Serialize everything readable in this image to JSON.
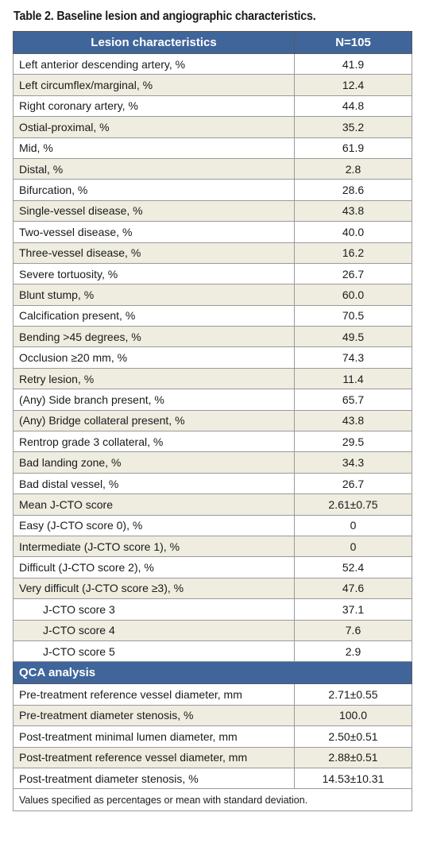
{
  "title": "Table 2. Baseline lesion and angiographic characteristics.",
  "header": {
    "col1": "Lesion characteristics",
    "col2": "N=105"
  },
  "rows": [
    {
      "label": "Left anterior descending artery, %",
      "value": "41.9"
    },
    {
      "label": "Left circumflex/marginal, %",
      "value": "12.4"
    },
    {
      "label": "Right coronary artery, %",
      "value": "44.8"
    },
    {
      "label": "Ostial-proximal, %",
      "value": "35.2"
    },
    {
      "label": "Mid, %",
      "value": "61.9"
    },
    {
      "label": "Distal, %",
      "value": "2.8"
    },
    {
      "label": "Bifurcation, %",
      "value": "28.6"
    },
    {
      "label": "Single-vessel disease, %",
      "value": "43.8"
    },
    {
      "label": "Two-vessel disease, %",
      "value": "40.0"
    },
    {
      "label": "Three-vessel disease, %",
      "value": "16.2"
    },
    {
      "label": "Severe tortuosity, %",
      "value": "26.7"
    },
    {
      "label": "Blunt stump, %",
      "value": "60.0"
    },
    {
      "label": "Calcification present, %",
      "value": "70.5"
    },
    {
      "label": "Bending >45 degrees, %",
      "value": "49.5"
    },
    {
      "label": "Occlusion ≥20 mm, %",
      "value": "74.3"
    },
    {
      "label": "Retry lesion, %",
      "value": "11.4"
    },
    {
      "label": "(Any) Side branch present, %",
      "value": "65.7"
    },
    {
      "label": "(Any) Bridge collateral present, %",
      "value": "43.8"
    },
    {
      "label": "Rentrop grade 3 collateral, %",
      "value": "29.5"
    },
    {
      "label": "Bad landing zone, %",
      "value": "34.3"
    },
    {
      "label": "Bad distal vessel, %",
      "value": "26.7"
    },
    {
      "label": "Mean J-CTO score",
      "value": "2.61±0.75"
    },
    {
      "label": "Easy (J-CTO score 0), %",
      "value": "0"
    },
    {
      "label": "Intermediate (J-CTO score 1), %",
      "value": "0"
    },
    {
      "label": "Difficult (J-CTO score 2), %",
      "value": "52.4"
    },
    {
      "label": "Very difficult (J-CTO score ≥3), %",
      "value": "47.6"
    },
    {
      "label": "J-CTO score 3",
      "value": "37.1"
    },
    {
      "label": "J-CTO score 4",
      "value": "7.6"
    },
    {
      "label": "J-CTO score 5",
      "value": "2.9"
    }
  ],
  "qca": {
    "heading": "QCA analysis",
    "rows": [
      {
        "label": "Pre-treatment reference vessel diameter, mm",
        "value": "2.71±0.55"
      },
      {
        "label": "Pre-treatment diameter stenosis, %",
        "value": "100.0"
      },
      {
        "label": "Post-treatment minimal lumen diameter, mm",
        "value": "2.50±0.51"
      },
      {
        "label": "Post-treatment reference vessel diameter, mm",
        "value": "2.88±0.51"
      },
      {
        "label": "Post-treatment diameter stenosis, %",
        "value": "14.53±10.31"
      }
    ]
  },
  "footnote": "Values specified as percentages or mean with standard deviation."
}
